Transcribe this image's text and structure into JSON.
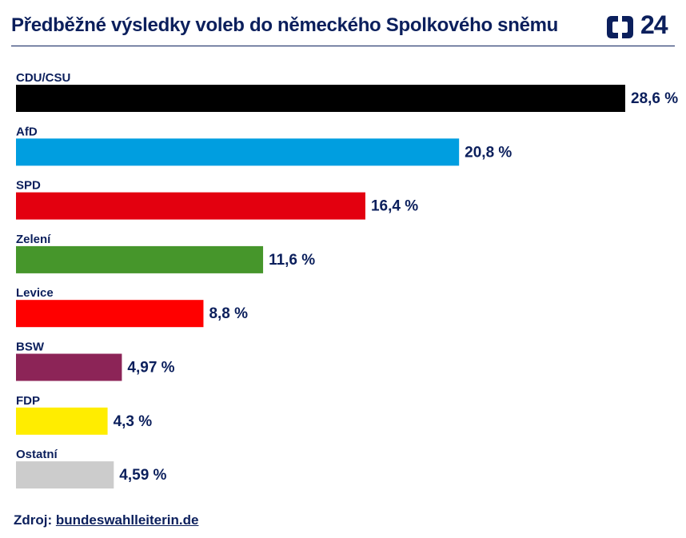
{
  "header": {
    "title": "Předběžné výsledky voleb do německého Spolkového sněmu",
    "logo_text": "24"
  },
  "source": {
    "label": "Zdroj:",
    "link_text": "bundeswahlleiterin.de"
  },
  "chart_data": {
    "type": "bar",
    "orientation": "horizontal",
    "title": "Předběžné výsledky voleb do německého Spolkového sněmu",
    "xlabel": "",
    "ylabel": "",
    "xlim": [
      0,
      28.6
    ],
    "grid": false,
    "categories": [
      "CDU/CSU",
      "AfD",
      "SPD",
      "Zelení",
      "Levice",
      "BSW",
      "FDP",
      "Ostatní"
    ],
    "values": [
      28.6,
      20.8,
      16.4,
      11.6,
      8.8,
      4.97,
      4.3,
      4.59
    ],
    "value_labels": [
      "28,6 %",
      "20,8 %",
      "16,4 %",
      "11,6 %",
      "8,8 %",
      "4,97 %",
      "4,3 %",
      "4,59 %"
    ],
    "colors": [
      "#000000",
      "#009ee0",
      "#e3000f",
      "#46962b",
      "#ff0000",
      "#8c2457",
      "#ffed00",
      "#cccccc"
    ]
  }
}
